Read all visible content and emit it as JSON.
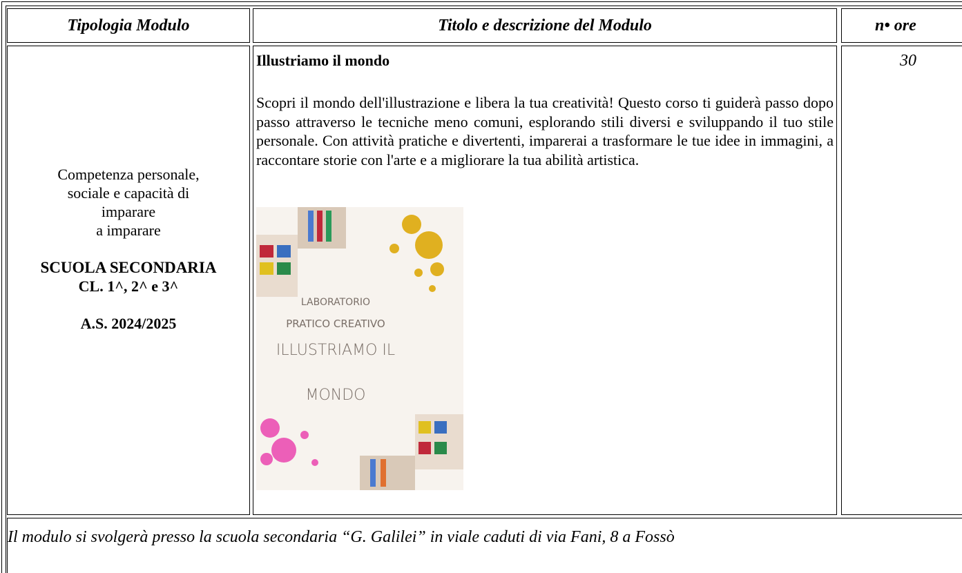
{
  "header": {
    "col1": "Tipologia Modulo",
    "col2": "Titolo e descrizione del Modulo",
    "col3": "n• ore"
  },
  "row": {
    "type_lines": [
      "Competenza personale,",
      "sociale e capacità di",
      "imparare",
      "a imparare"
    ],
    "school_lines": [
      "SCUOLA SECONDARIA",
      "CL. 1^, 2^ e 3^"
    ],
    "year": "A.S. 2024/2025",
    "title": "Illustriamo il mondo",
    "description": "Scopri il mondo dell'illustrazione e libera la tua creatività! Questo corso ti guiderà passo dopo passo attraverso le tecniche meno comuni, esplorando stili diversi e sviluppando il tuo stile personale. Con attività pratiche e divertenti, imparerai a trasformare le tue idee in immagini, a raccontare storie con l'arte e a migliorare la tua abilità artistica.",
    "poster_lines": [
      "LABORATORIO",
      "PRATICO CREATIVO",
      "ILLUSTRIAMO IL",
      "MONDO"
    ],
    "hours": 30
  },
  "footer": "Il modulo si svolgerà presso la scuola secondaria “G. Galilei” in viale caduti di via Fani, 8 a Fossò"
}
